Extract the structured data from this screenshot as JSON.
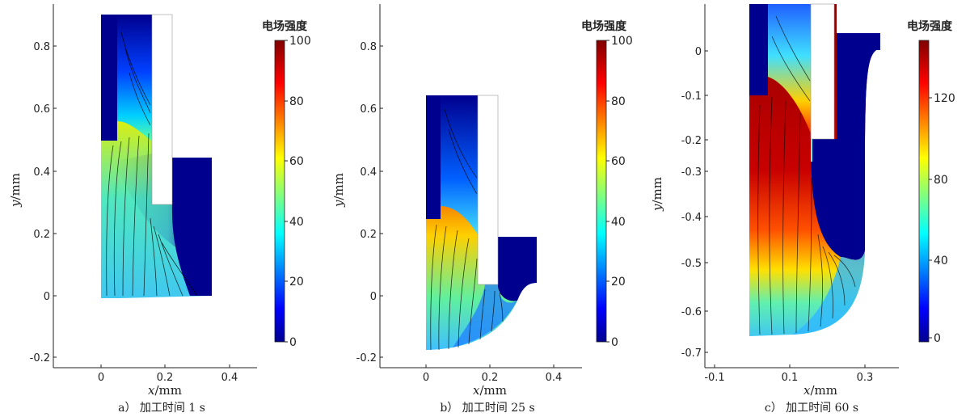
{
  "chart_data": [
    {
      "type": "heatmap",
      "caption": "a）  加工时间 1 s",
      "xlabel_var": "x",
      "xlabel_unit": "/mm",
      "ylabel_var": "y",
      "ylabel_unit": "/mm",
      "xlim": [
        -0.15,
        0.5
      ],
      "ylim": [
        -0.22,
        0.92
      ],
      "xticks": [
        0,
        0.2,
        0.4
      ],
      "xtick_labels": [
        "0",
        "0.2",
        "0.4"
      ],
      "yticks": [
        -0.2,
        0,
        0.2,
        0.4,
        0.6,
        0.8
      ],
      "ytick_labels": [
        "-0.2",
        "0",
        "0.2",
        "0.4",
        "0.6",
        "0.8"
      ],
      "colorbar": {
        "title": "电场强度",
        "min": 0,
        "max": 100,
        "ticks": [
          0,
          20,
          40,
          60,
          80,
          100
        ],
        "tick_labels": [
          "0",
          "20",
          "40",
          "60",
          "80",
          "100"
        ]
      }
    },
    {
      "type": "heatmap",
      "caption": "b）  加工时间 25 s",
      "xlabel_var": "x",
      "xlabel_unit": "/mm",
      "ylabel_var": "y",
      "ylabel_unit": "/mm",
      "xlim": [
        -0.17,
        0.5
      ],
      "ylim": [
        -0.22,
        0.92
      ],
      "xticks": [
        0,
        0.2,
        0.4
      ],
      "xtick_labels": [
        "0",
        "0.2",
        "0.4"
      ],
      "yticks": [
        -0.2,
        0,
        0.2,
        0.4,
        0.6,
        0.8
      ],
      "ytick_labels": [
        "-0.2",
        "0",
        "0.2",
        "0.4",
        "0.6",
        "0.8"
      ],
      "colorbar": {
        "title": "电场强度",
        "min": 0,
        "max": 100,
        "ticks": [
          0,
          20,
          40,
          60,
          80,
          100
        ],
        "tick_labels": [
          "0",
          "20",
          "40",
          "60",
          "80",
          "100"
        ]
      }
    },
    {
      "type": "heatmap",
      "caption": "c）  加工时间 60 s",
      "xlabel_var": "x",
      "xlabel_unit": "/mm",
      "ylabel_var": "y",
      "ylabel_unit": "/mm",
      "xlim": [
        -0.13,
        0.4
      ],
      "ylim": [
        -0.73,
        0.06
      ],
      "xticks": [
        -0.1,
        0.1,
        0.3
      ],
      "xtick_labels": [
        "-0.1",
        "0.1",
        "0.3"
      ],
      "yticks": [
        -0.7,
        -0.6,
        -0.5,
        -0.4,
        -0.3,
        -0.2,
        -0.1,
        0
      ],
      "ytick_labels": [
        "-0.7",
        "-0.6",
        "-0.5",
        "-0.4",
        "-0.3",
        "-0.2",
        "-0.1",
        "0"
      ],
      "colorbar": {
        "title": "电场强度",
        "min": 0,
        "max": 148,
        "ticks": [
          0,
          40,
          80,
          120
        ],
        "tick_labels": [
          "0",
          "40",
          "80",
          "120"
        ]
      }
    }
  ],
  "colors": {
    "background": "#ffffff",
    "axis": "#222222",
    "tool_electrode": "#ffffff",
    "jet_low": "#00008f",
    "jet_high": "#800000",
    "field_lines": "#000000"
  }
}
